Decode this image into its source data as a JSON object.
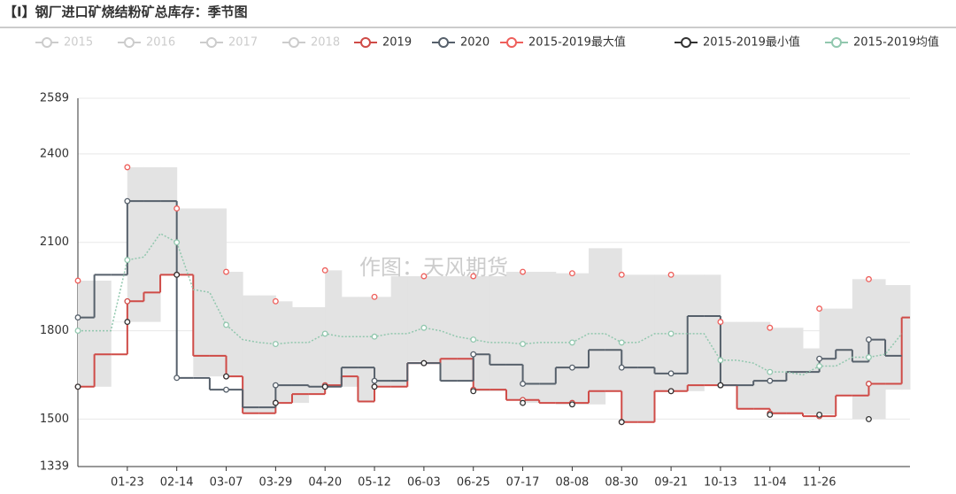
{
  "chart_data": {
    "type": "seasonal-step",
    "title": "【I】钢厂进口矿烧结粉矿总库存：季节图",
    "watermark": "作图：天风期货",
    "categories": [
      null,
      null,
      null,
      "01-23",
      null,
      null,
      "02-14",
      null,
      null,
      "03-07",
      null,
      null,
      "03-29",
      null,
      null,
      "04-20",
      null,
      null,
      "05-12",
      null,
      null,
      "06-03",
      null,
      null,
      "06-25",
      null,
      null,
      "07-17",
      null,
      null,
      "08-08",
      null,
      null,
      "08-30",
      null,
      null,
      "09-21",
      null,
      null,
      "10-13",
      null,
      null,
      "11-04",
      null,
      null,
      "11-26",
      null,
      null,
      null,
      null,
      null
    ],
    "ylim": [
      1339,
      2589
    ],
    "yticks": [
      1339,
      1500,
      1800,
      2100,
      2400,
      2589
    ],
    "grid": true,
    "band_color": "#e3e3e3",
    "series": [
      {
        "name": "2015",
        "color": "#cccccc",
        "visible": false
      },
      {
        "name": "2016",
        "color": "#cccccc",
        "visible": false
      },
      {
        "name": "2017",
        "color": "#cccccc",
        "visible": false
      },
      {
        "name": "2018",
        "color": "#cccccc",
        "visible": false
      },
      {
        "name": "2019",
        "color": "#cf4b47",
        "step": true,
        "values": [
          1610,
          1720,
          1720,
          1900,
          1930,
          1990,
          1990,
          1715,
          1715,
          1645,
          1520,
          1520,
          1555,
          1585,
          1585,
          1615,
          1645,
          1560,
          1610,
          1610,
          1690,
          1690,
          1705,
          1705,
          1600,
          1600,
          1565,
          1565,
          1555,
          1555,
          1555,
          1595,
          1595,
          1490,
          1490,
          1595,
          1595,
          1615,
          1615,
          1615,
          1535,
          1535,
          1520,
          1520,
          1510,
          1510,
          1580,
          1580,
          1620,
          1620,
          1845
        ]
      },
      {
        "name": "2020",
        "color": "#56606b",
        "step": true,
        "values": [
          1845,
          1990,
          1990,
          2240,
          2240,
          2240,
          1640,
          1640,
          1600,
          1600,
          1540,
          1540,
          1615,
          1615,
          1610,
          1610,
          1675,
          1675,
          1630,
          1630,
          1690,
          1690,
          1630,
          1630,
          1720,
          1685,
          1685,
          1620,
          1620,
          1675,
          1675,
          1735,
          1735,
          1675,
          1675,
          1655,
          1655,
          1850,
          1850,
          1615,
          1615,
          1630,
          1630,
          1660,
          1660,
          1705,
          1735,
          1695,
          1770,
          1715,
          null
        ]
      },
      {
        "name": "2015-2019最大值",
        "color": "#ee5f5b",
        "band": "upper",
        "values": [
          1970,
          1970,
          1830,
          2355,
          2355,
          2355,
          2215,
          2215,
          2215,
          2000,
          1920,
          1920,
          1900,
          1880,
          1880,
          2005,
          1915,
          1915,
          1915,
          1985,
          1985,
          1985,
          1985,
          1985,
          1985,
          1985,
          2000,
          2000,
          2000,
          1995,
          1995,
          2080,
          2080,
          1990,
          1990,
          1990,
          1990,
          1990,
          1990,
          1830,
          1830,
          1830,
          1810,
          1810,
          1740,
          1875,
          1875,
          1975,
          1975,
          1955,
          1955
        ]
      },
      {
        "name": "2015-2019最小值",
        "color": "#333333",
        "band": "lower",
        "values": [
          1610,
          1610,
          1830,
          1830,
          1830,
          1990,
          1990,
          1645,
          1645,
          1645,
          1520,
          1520,
          1555,
          1555,
          1585,
          1610,
          1610,
          1560,
          1610,
          1610,
          1695,
          1690,
          1630,
          1630,
          1595,
          1595,
          1565,
          1555,
          1555,
          1550,
          1550,
          1550,
          1595,
          1490,
          1490,
          1595,
          1595,
          1595,
          1615,
          1615,
          1535,
          1535,
          1515,
          1515,
          1515,
          1515,
          1580,
          1500,
          1500,
          1600,
          1600
        ]
      },
      {
        "name": "2015-2019均值",
        "color": "#91c7ae",
        "dotted": true,
        "values": [
          1800,
          1800,
          1800,
          2040,
          2050,
          2130,
          2100,
          1940,
          1930,
          1820,
          1770,
          1760,
          1755,
          1760,
          1760,
          1790,
          1780,
          1780,
          1780,
          1790,
          1790,
          1810,
          1800,
          1780,
          1770,
          1760,
          1760,
          1755,
          1760,
          1760,
          1760,
          1790,
          1790,
          1760,
          1760,
          1790,
          1790,
          1790,
          1790,
          1700,
          1700,
          1690,
          1660,
          1660,
          1650,
          1680,
          1680,
          1710,
          1710,
          1720,
          1790
        ]
      }
    ]
  }
}
